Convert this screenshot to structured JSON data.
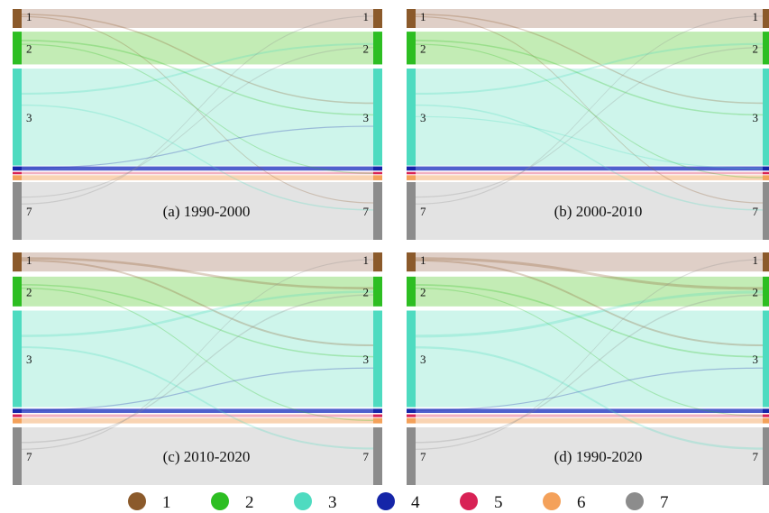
{
  "categories": [
    {
      "id": "1",
      "label": "1",
      "node_color": "#8B5A2B",
      "band_color": "#D9C7BD"
    },
    {
      "id": "2",
      "label": "2",
      "node_color": "#2DBE22",
      "band_color": "#B9E9A8"
    },
    {
      "id": "3",
      "label": "3",
      "node_color": "#4EDBC0",
      "band_color": "#C6F3E8"
    },
    {
      "id": "4",
      "label": "4",
      "node_color": "#1525A8",
      "band_color": "#3D4FC8"
    },
    {
      "id": "5",
      "label": "5",
      "node_color": "#D82255",
      "band_color": "#F0A3B6"
    },
    {
      "id": "6",
      "label": "6",
      "node_color": "#F4A15A",
      "band_color": "#F8CDA6"
    },
    {
      "id": "7",
      "label": "7",
      "node_color": "#8C8C8C",
      "band_color": "#DEDEDE"
    }
  ],
  "panels": [
    {
      "caption": "(a) 1990-2000"
    },
    {
      "caption": "(b) 2000-2010"
    },
    {
      "caption": "(c) 2010-2020"
    },
    {
      "caption": "(d) 1990-2020"
    }
  ],
  "node_labels_shown": [
    "1",
    "2",
    "3",
    "7"
  ],
  "legend": {
    "items": [
      {
        "label": "1",
        "color": "#8B5A2B"
      },
      {
        "label": "2",
        "color": "#2DBE22"
      },
      {
        "label": "3",
        "color": "#4EDBC0"
      },
      {
        "label": "4",
        "color": "#1525A8"
      },
      {
        "label": "5",
        "color": "#D82255"
      },
      {
        "label": "6",
        "color": "#F4A15A"
      },
      {
        "label": "7",
        "color": "#8C8C8C"
      }
    ]
  }
}
